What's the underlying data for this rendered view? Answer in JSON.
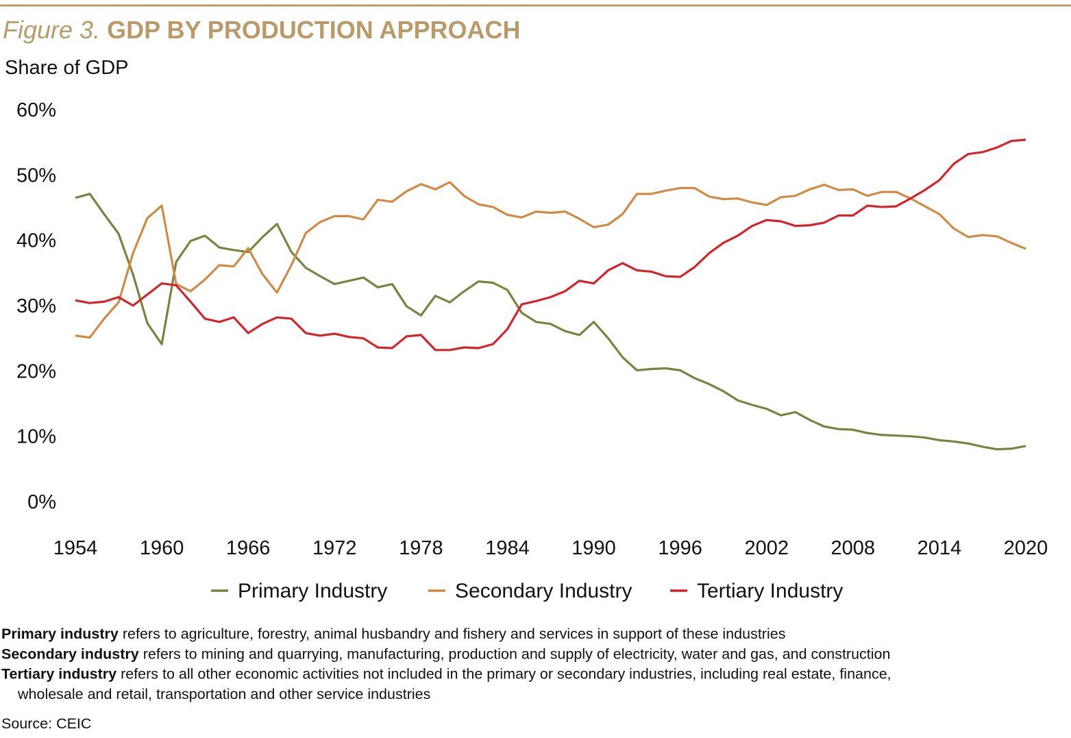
{
  "chart_data": {
    "type": "line",
    "figure_label": "Figure 3.",
    "title": "GDP BY PRODUCTION APPROACH",
    "y_label": "Share of GDP",
    "x": [
      1954,
      1955,
      1956,
      1957,
      1958,
      1959,
      1960,
      1961,
      1962,
      1963,
      1964,
      1965,
      1966,
      1967,
      1968,
      1969,
      1970,
      1971,
      1972,
      1973,
      1974,
      1975,
      1976,
      1977,
      1978,
      1979,
      1980,
      1981,
      1982,
      1983,
      1984,
      1985,
      1986,
      1987,
      1988,
      1989,
      1990,
      1991,
      1992,
      1993,
      1994,
      1995,
      1996,
      1997,
      1998,
      1999,
      2000,
      2001,
      2002,
      2003,
      2004,
      2005,
      2006,
      2007,
      2008,
      2009,
      2010,
      2011,
      2012,
      2013,
      2014,
      2015,
      2016,
      2017,
      2018,
      2019,
      2020
    ],
    "series": [
      {
        "name": "Primary Industry",
        "color": "#76843f",
        "values": [
          46.5,
          47.1,
          44.0,
          41.0,
          34.8,
          27.3,
          24.1,
          36.7,
          39.9,
          40.7,
          38.9,
          38.5,
          38.2,
          40.5,
          42.5,
          38.2,
          35.8,
          34.5,
          33.3,
          33.8,
          34.3,
          32.8,
          33.3,
          29.9,
          28.5,
          31.5,
          30.5,
          32.2,
          33.7,
          33.5,
          32.4,
          28.9,
          27.5,
          27.2,
          26.1,
          25.5,
          27.5,
          25.0,
          22.1,
          20.1,
          20.3,
          20.4,
          20.1,
          18.9,
          18.0,
          16.9,
          15.5,
          14.8,
          14.2,
          13.2,
          13.7,
          12.5,
          11.5,
          11.1,
          11.0,
          10.5,
          10.2,
          10.1,
          10.0,
          9.8,
          9.4,
          9.2,
          8.9,
          8.4,
          8.0,
          8.1,
          8.5
        ]
      },
      {
        "name": "Secondary Industry",
        "color": "#d08a43",
        "values": [
          25.4,
          25.1,
          28.0,
          30.5,
          38.0,
          43.4,
          45.3,
          33.3,
          32.2,
          34.0,
          36.2,
          36.0,
          38.8,
          34.8,
          32.0,
          36.2,
          41.1,
          42.8,
          43.7,
          43.7,
          43.2,
          46.2,
          45.9,
          47.5,
          48.6,
          47.8,
          48.9,
          46.8,
          45.5,
          45.1,
          43.9,
          43.5,
          44.4,
          44.2,
          44.4,
          43.3,
          42.0,
          42.4,
          44.0,
          47.1,
          47.1,
          47.6,
          48.0,
          48.0,
          46.7,
          46.3,
          46.4,
          45.8,
          45.4,
          46.6,
          46.8,
          47.8,
          48.5,
          47.7,
          47.8,
          46.8,
          47.4,
          47.4,
          46.4,
          45.2,
          44.0,
          41.8,
          40.5,
          40.8,
          40.6,
          39.6,
          38.7
        ]
      },
      {
        "name": "Tertiary Industry",
        "color": "#d4232a",
        "values": [
          30.8,
          30.4,
          30.6,
          31.3,
          30.0,
          31.7,
          33.4,
          33.1,
          30.6,
          28.0,
          27.5,
          28.2,
          25.8,
          27.2,
          28.2,
          28.0,
          25.8,
          25.4,
          25.7,
          25.2,
          25.0,
          23.6,
          23.5,
          25.3,
          25.5,
          23.2,
          23.2,
          23.6,
          23.5,
          24.1,
          26.4,
          30.2,
          30.7,
          31.3,
          32.2,
          33.8,
          33.4,
          35.4,
          36.5,
          35.4,
          35.2,
          34.5,
          34.4,
          35.9,
          38.0,
          39.6,
          40.7,
          42.2,
          43.1,
          42.9,
          42.2,
          42.3,
          42.7,
          43.8,
          43.8,
          45.3,
          45.1,
          45.2,
          46.4,
          47.7,
          49.2,
          51.7,
          53.2,
          53.5,
          54.2,
          55.2,
          55.4
        ]
      }
    ],
    "xlim": [
      1954,
      2020
    ],
    "xticks": [
      1954,
      1960,
      1966,
      1972,
      1978,
      1984,
      1990,
      1996,
      2002,
      2008,
      2014,
      2020
    ],
    "ylim": [
      0,
      60
    ],
    "yticks": [
      {
        "value": 0,
        "label": "0%"
      },
      {
        "value": 10,
        "label": "10%"
      },
      {
        "value": 20,
        "label": "20%"
      },
      {
        "value": 30,
        "label": "30%"
      },
      {
        "value": 40,
        "label": "40%"
      },
      {
        "value": 50,
        "label": "50%"
      },
      {
        "value": 60,
        "label": "60%"
      }
    ],
    "grid": false,
    "legend": "bottom",
    "notes": [
      {
        "term": "Primary industry",
        "text_lines": [
          "refers to agriculture, forestry, animal husbandry and fishery and services in support of these industries"
        ]
      },
      {
        "term": "Secondary industry",
        "text_lines": [
          "refers to mining and quarrying, manufacturing, production and supply of electricity, water and gas, and construction"
        ]
      },
      {
        "term": "Tertiary industry",
        "text_lines": [
          "refers to all other economic activities not included in the primary or secondary industries, including real estate, finance,",
          "wholesale and retail, transportation and other service industries"
        ]
      }
    ],
    "source": "Source: CEIC"
  }
}
